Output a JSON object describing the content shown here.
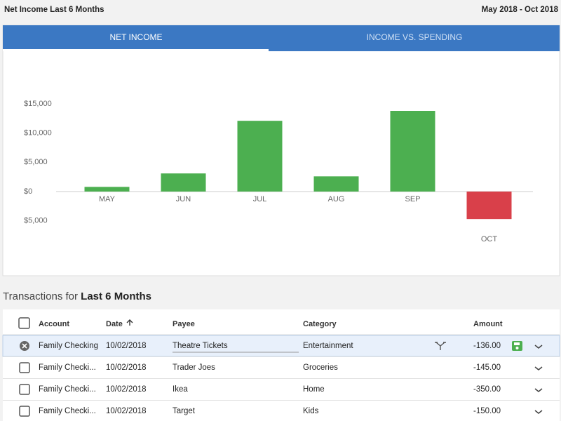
{
  "header": {
    "title": "Net Income Last 6 Months",
    "date_range": "May 2018 - Oct 2018"
  },
  "tabs": [
    "NET INCOME",
    "INCOME VS. SPENDING"
  ],
  "chart_data": {
    "type": "bar",
    "categories": [
      "MAY",
      "JUN",
      "JUL",
      "AUG",
      "SEP",
      "OCT"
    ],
    "values": [
      800,
      3100,
      12100,
      2600,
      13800,
      -4700
    ],
    "positive_color": "#4caf50",
    "negative_color": "#d9404a",
    "ylim": [
      -5000,
      15000
    ],
    "yticks": [
      {
        "value": -5000,
        "label": "$5,000"
      },
      {
        "value": 0,
        "label": "$0"
      },
      {
        "value": 5000,
        "label": "$5,000"
      },
      {
        "value": 10000,
        "label": "$10,000"
      },
      {
        "value": 15000,
        "label": "$15,000"
      }
    ],
    "grid": false
  },
  "transactions": {
    "title_prefix": "Transactions for",
    "title_period": "Last 6 Months",
    "columns": {
      "account": "Account",
      "date": "Date",
      "payee": "Payee",
      "category": "Category",
      "amount": "Amount"
    },
    "rows": [
      {
        "account": "Family Checking",
        "date": "10/02/2018",
        "payee": "Theatre Tickets",
        "category": "Entertainment",
        "amount": "-136.00"
      },
      {
        "account": "Family Checki...",
        "date": "10/02/2018",
        "payee": "Trader Joes",
        "category": "Groceries",
        "amount": "-145.00"
      },
      {
        "account": "Family Checki...",
        "date": "10/02/2018",
        "payee": "Ikea",
        "category": "Home",
        "amount": "-350.00"
      },
      {
        "account": "Family Checki...",
        "date": "10/02/2018",
        "payee": "Target",
        "category": "Kids",
        "amount": "-150.00"
      }
    ]
  }
}
